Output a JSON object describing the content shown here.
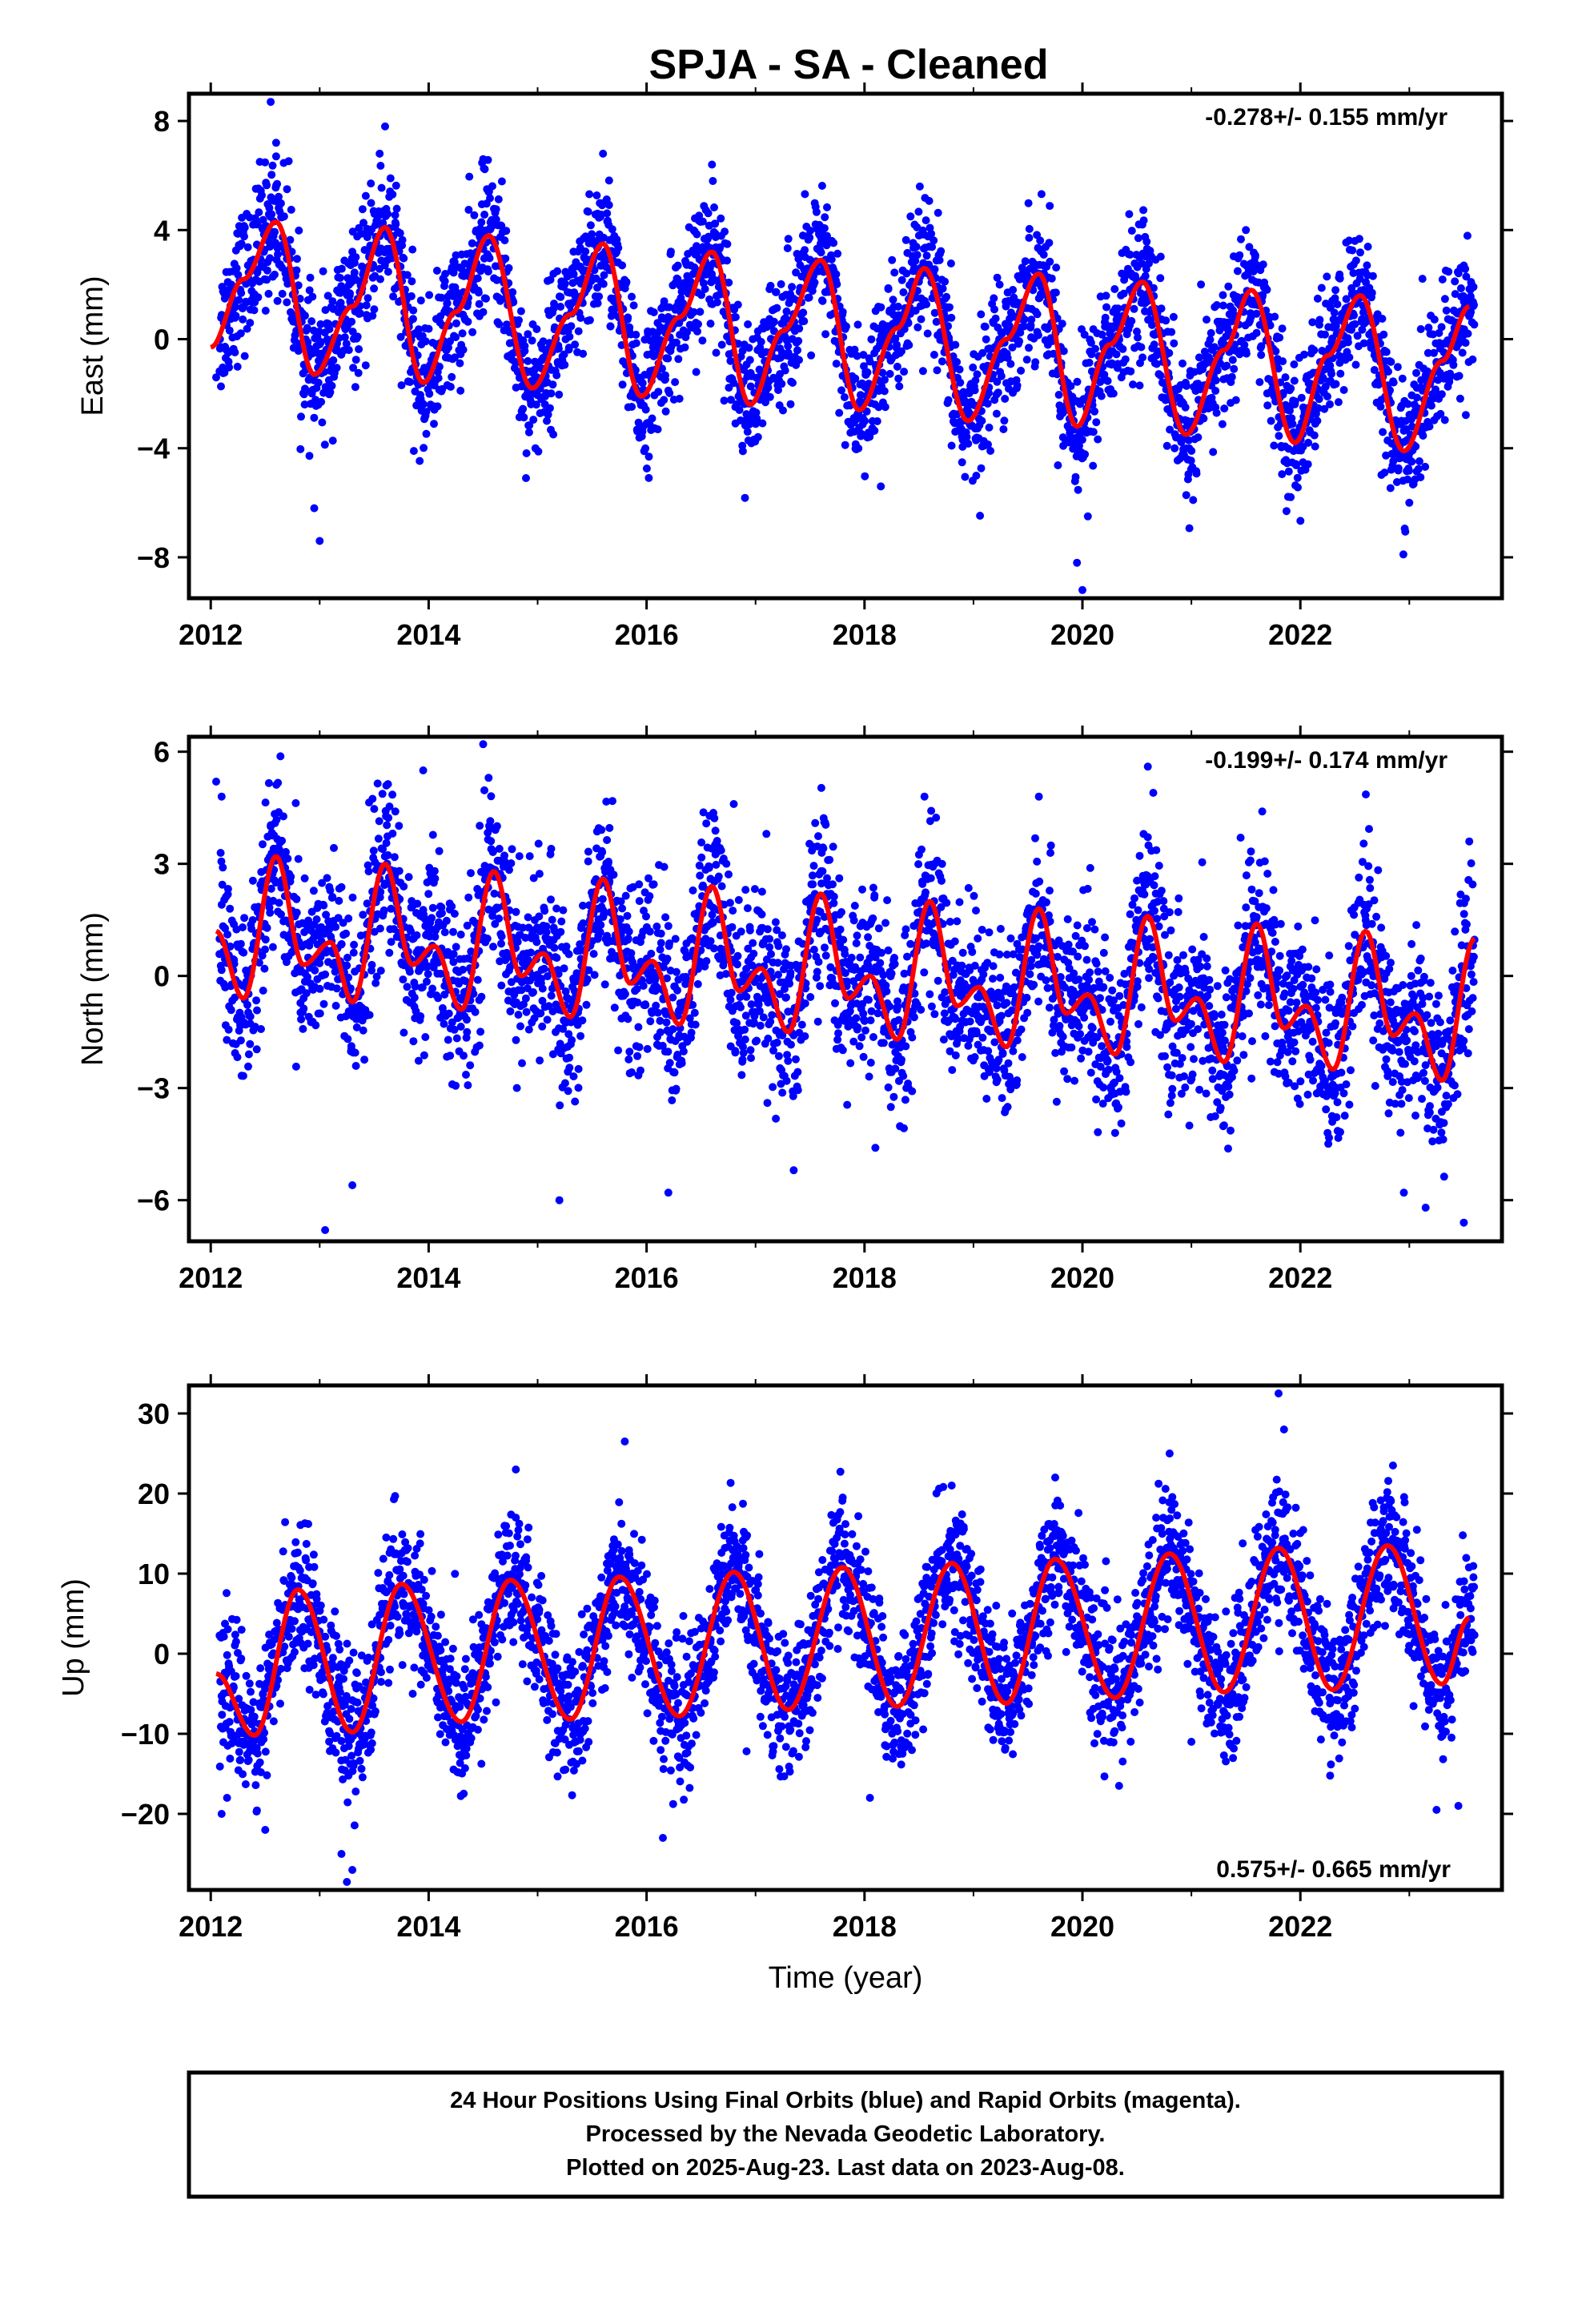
{
  "title": "SPJA  - SA - Cleaned",
  "colors": {
    "points": "#0000ff",
    "fit": "#ff0000",
    "frame": "#000000"
  },
  "chart_data": [
    {
      "type": "scatter",
      "panel": "east",
      "ylabel": "East (mm)",
      "xlabel": "",
      "xlim": [
        2011.8,
        2023.85
      ],
      "ylim": [
        -9.5,
        9.0
      ],
      "xticks": [
        2012,
        2014,
        2016,
        2018,
        2020,
        2022
      ],
      "yticks": [
        8,
        4,
        0,
        -4,
        -8
      ],
      "rate_label": "-0.278+/- 0.155 mm/yr",
      "rate_position": "top-right",
      "fit": {
        "x": [
          2012.0,
          2012.3,
          2012.6,
          2012.95,
          2013.3,
          2013.6,
          2013.95,
          2014.25,
          2014.55,
          2014.95,
          2015.3,
          2015.6,
          2015.95,
          2016.3,
          2016.6,
          2016.95,
          2017.25,
          2017.6,
          2017.95,
          2018.3,
          2018.55,
          2018.95,
          2019.3,
          2019.6,
          2019.95,
          2020.25,
          2020.55,
          2020.95,
          2021.3,
          2021.55,
          2021.95,
          2022.25,
          2022.55,
          2022.95,
          2023.3,
          2023.55
        ],
        "y": [
          -0.3,
          2.2,
          4.3,
          -1.3,
          1.2,
          4.1,
          -1.6,
          1.0,
          3.8,
          -1.8,
          0.9,
          3.5,
          -2.1,
          0.8,
          3.2,
          -2.4,
          0.3,
          2.9,
          -2.6,
          0.4,
          2.6,
          -3.0,
          0.0,
          2.4,
          -3.2,
          -0.2,
          2.1,
          -3.5,
          -0.4,
          1.8,
          -3.8,
          -0.6,
          1.6,
          -4.1,
          -0.8,
          1.2
        ]
      },
      "sample_points": {
        "x": [
          2012.05,
          2012.2,
          2012.45,
          2012.55,
          2012.6,
          2012.7,
          2012.95,
          2013.0,
          2013.55,
          2013.6,
          2013.65,
          2014.5,
          2014.55,
          2015.6,
          2015.55,
          2016.6,
          2017.7,
          2018.15,
          2018.5,
          2019.6,
          2019.95,
          2020.0,
          2020.05,
          2020.55,
          2021.5,
          2022.5,
          2023.0,
          2023.5
        ],
        "y": [
          -1.4,
          1.0,
          6.5,
          8.7,
          7.2,
          5.5,
          -6.2,
          -7.4,
          6.8,
          7.8,
          5.9,
          6.6,
          5.4,
          6.8,
          4.6,
          6.4,
          3.6,
          -5.4,
          3.8,
          2.4,
          -8.2,
          -9.2,
          -6.5,
          4.2,
          4.0,
          3.6,
          -6.0,
          2.7
        ]
      },
      "sample_anchors": [
        [
          2012.0,
          -1.0,
          1.1
        ],
        [
          2012.6,
          2.0,
          6.5
        ],
        [
          2013.0,
          -1.3,
          0.8
        ],
        [
          2013.6,
          2.2,
          4.8
        ],
        [
          2014.0,
          -1.6,
          0.7
        ]
      ]
    },
    {
      "type": "scatter",
      "panel": "north",
      "ylabel": "North (mm)",
      "xlabel": "",
      "xlim": [
        2011.8,
        2023.85
      ],
      "ylim": [
        -7.1,
        6.4
      ],
      "xticks": [
        2012,
        2014,
        2016,
        2018,
        2020,
        2022
      ],
      "yticks": [
        6,
        3,
        0,
        -3,
        -6
      ],
      "rate_label": "-0.199+/- 0.174 mm/yr",
      "rate_position": "top-right",
      "fit": {
        "x": [
          2012.05,
          2012.3,
          2012.6,
          2012.85,
          2013.1,
          2013.3,
          2013.6,
          2013.85,
          2014.05,
          2014.3,
          2014.6,
          2014.85,
          2015.05,
          2015.3,
          2015.6,
          2015.85,
          2016.05,
          2016.3,
          2016.6,
          2016.85,
          2017.05,
          2017.3,
          2017.6,
          2017.85,
          2018.05,
          2018.3,
          2018.6,
          2018.85,
          2019.05,
          2019.3,
          2019.6,
          2019.85,
          2020.05,
          2020.3,
          2020.6,
          2020.85,
          2021.05,
          2021.3,
          2021.6,
          2021.85,
          2022.05,
          2022.3,
          2022.6,
          2022.85,
          2023.05,
          2023.3,
          2023.6
        ],
        "y": [
          1.2,
          -0.6,
          3.2,
          0.3,
          0.9,
          -0.7,
          3.0,
          0.3,
          0.8,
          -0.9,
          2.8,
          0.0,
          0.6,
          -1.1,
          2.6,
          -0.2,
          0.4,
          -1.3,
          2.4,
          -0.4,
          0.2,
          -1.5,
          2.2,
          -0.6,
          0.0,
          -1.7,
          2.0,
          -0.8,
          -0.3,
          -1.9,
          1.8,
          -1.0,
          -0.5,
          -2.1,
          1.6,
          -1.2,
          -0.6,
          -2.3,
          1.4,
          -1.4,
          -0.8,
          -2.5,
          1.2,
          -1.6,
          -1.0,
          -2.8,
          1.0
        ]
      },
      "sample_points": {
        "x": [
          2012.05,
          2012.1,
          2012.55,
          2013.05,
          2013.3,
          2013.95,
          2014.5,
          2014.55,
          2015.2,
          2016.2,
          2016.8,
          2017.1,
          2017.35,
          2018.1,
          2018.55,
          2019.6,
          2020.3,
          2020.6,
          2020.65,
          2021.3,
          2021.65,
          2022.25,
          2022.95,
          2023.15,
          2023.5,
          2023.55
        ],
        "y": [
          5.2,
          4.8,
          4.0,
          -6.8,
          -5.6,
          5.5,
          6.2,
          5.3,
          -6.0,
          -5.8,
          4.6,
          3.8,
          -5.2,
          -4.6,
          4.8,
          4.8,
          -4.2,
          5.6,
          4.9,
          -4.0,
          4.4,
          -4.2,
          -5.8,
          -6.2,
          -6.6,
          3.6
        ]
      },
      "sample_anchors": []
    },
    {
      "type": "scatter",
      "panel": "up",
      "ylabel": "Up (mm)",
      "xlabel": "Time (year)",
      "xlim": [
        2011.8,
        2023.85
      ],
      "ylim": [
        -29.5,
        33.5
      ],
      "xticks": [
        2012,
        2014,
        2016,
        2018,
        2020,
        2022
      ],
      "yticks": [
        30,
        20,
        10,
        0,
        -10,
        -20
      ],
      "rate_label": "0.575+/- 0.665 mm/yr",
      "rate_position": "bottom-right",
      "fit": {
        "x": [
          2012.05,
          2012.4,
          2012.8,
          2013.3,
          2013.75,
          2014.3,
          2014.75,
          2015.3,
          2015.75,
          2016.3,
          2016.8,
          2017.3,
          2017.8,
          2018.3,
          2018.8,
          2019.3,
          2019.75,
          2020.3,
          2020.8,
          2021.3,
          2021.8,
          2022.3,
          2022.8,
          2023.3,
          2023.55
        ],
        "y": [
          -2.5,
          -10.2,
          8.0,
          -9.8,
          8.7,
          -8.5,
          9.2,
          -8.2,
          9.6,
          -7.8,
          10.2,
          -7.0,
          10.8,
          -6.6,
          11.3,
          -6.2,
          11.8,
          -5.5,
          12.5,
          -4.8,
          13.2,
          -4.5,
          13.5,
          -3.8,
          4.5
        ]
      },
      "sample_points": {
        "x": [
          2012.1,
          2012.15,
          2012.5,
          2013.2,
          2013.25,
          2013.3,
          2014.8,
          2015.8,
          2016.15,
          2016.8,
          2017.8,
          2018.05,
          2018.8,
          2019.75,
          2020.8,
          2021.0,
          2021.8,
          2021.85,
          2022.85,
          2023.25,
          2023.45
        ],
        "y": [
          -20.0,
          -18.0,
          -22.0,
          -25.0,
          -28.5,
          -27.0,
          23.0,
          26.5,
          -23.0,
          13.0,
          19.5,
          -18.0,
          21.0,
          22.0,
          25.0,
          -11.0,
          32.5,
          28.0,
          23.5,
          -19.5,
          -19.0
        ]
      },
      "sample_anchors": []
    }
  ],
  "footer": {
    "line1": "24 Hour Positions Using Final Orbits (blue) and Rapid Orbits (magenta).",
    "line2": "Processed by the Nevada Geodetic Laboratory.",
    "line3": "Plotted on 2025-Aug-23. Last data on 2023-Aug-08."
  }
}
